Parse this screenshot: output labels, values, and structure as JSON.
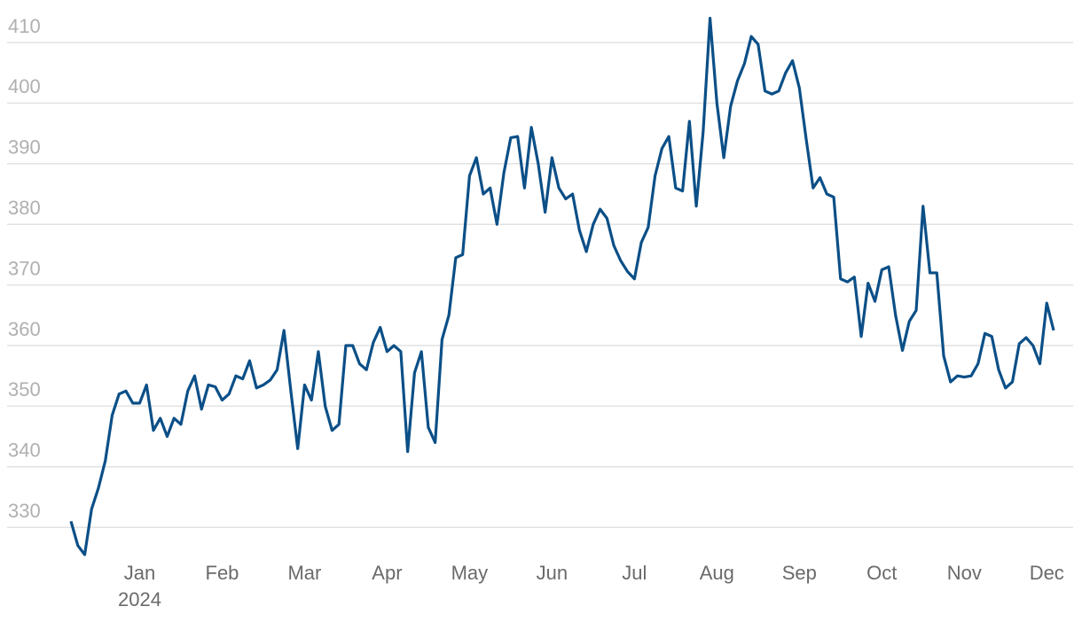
{
  "chart_data": {
    "type": "line",
    "categories": [
      null,
      null,
      null,
      null,
      null,
      null,
      null,
      null,
      null,
      null,
      "Jan",
      null,
      null,
      null,
      null,
      null,
      null,
      null,
      null,
      null,
      null,
      null,
      "Feb",
      null,
      null,
      null,
      null,
      null,
      null,
      null,
      null,
      null,
      null,
      null,
      "Mar",
      null,
      null,
      null,
      null,
      null,
      null,
      null,
      null,
      null,
      null,
      null,
      "Apr",
      null,
      null,
      null,
      null,
      null,
      null,
      null,
      null,
      null,
      null,
      null,
      "May",
      null,
      null,
      null,
      null,
      null,
      null,
      null,
      null,
      null,
      null,
      null,
      "Jun",
      null,
      null,
      null,
      null,
      null,
      null,
      null,
      null,
      null,
      null,
      null,
      "Jul",
      null,
      null,
      null,
      null,
      null,
      null,
      null,
      null,
      null,
      null,
      null,
      "Aug",
      null,
      null,
      null,
      null,
      null,
      null,
      null,
      null,
      null,
      null,
      null,
      "Sep",
      null,
      null,
      null,
      null,
      null,
      null,
      null,
      null,
      null,
      null,
      null,
      "Oct",
      null,
      null,
      null,
      null,
      null,
      null,
      null,
      null,
      null,
      null,
      null,
      "Nov",
      null,
      null,
      null,
      null,
      null,
      null,
      null,
      null,
      null,
      null,
      null,
      "Dec",
      null
    ],
    "x_sublabel": "2024",
    "series": [
      {
        "color": "#0b4f87",
        "values": [
          331,
          327,
          325.5,
          333,
          336.5,
          341,
          348.5,
          352,
          352.5,
          350.5,
          350.5,
          353.5,
          346,
          348,
          345,
          348,
          347,
          352.5,
          355,
          349.5,
          353.5,
          353.2,
          351,
          352,
          355,
          354.5,
          357.5,
          353,
          353.5,
          354.3,
          356,
          362.5,
          352.5,
          343,
          353.5,
          351,
          359,
          350,
          346,
          347,
          360,
          360,
          357,
          356,
          360.5,
          363,
          359,
          360,
          359,
          342.5,
          355.5,
          359,
          346.5,
          344,
          361,
          365,
          374.5,
          375,
          388,
          391,
          385,
          386,
          380,
          388.5,
          394.3,
          394.5,
          386,
          396,
          390,
          382,
          391,
          386,
          384.2,
          385,
          379,
          375.5,
          380,
          382.5,
          381,
          376.5,
          374,
          372.2,
          371,
          377,
          379.5,
          388,
          392.5,
          394.5,
          386,
          385.5,
          397,
          383,
          395.3,
          414,
          400,
          391,
          399.5,
          403.7,
          406.5,
          411,
          409.7,
          402,
          401.5,
          402,
          405,
          407,
          402.5,
          394,
          386,
          387.7,
          385,
          384.5,
          371,
          370.5,
          371.3,
          361.5,
          370.3,
          367.3,
          372.5,
          373,
          365,
          359.2,
          364,
          365.8,
          383,
          372,
          372,
          358.3,
          354,
          355,
          354.8,
          355,
          357,
          362,
          361.5,
          356,
          353,
          354,
          360.3,
          361.3,
          360,
          357,
          367,
          362.5
        ]
      }
    ],
    "ylim": [
      325,
      415
    ],
    "yticks": [
      330,
      340,
      350,
      360,
      370,
      380,
      390,
      400,
      410
    ],
    "grid": true
  }
}
